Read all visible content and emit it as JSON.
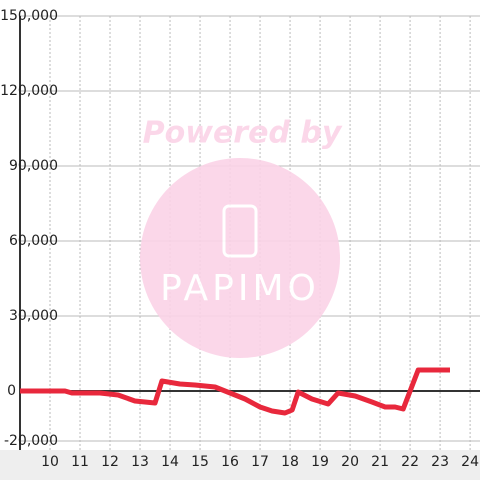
{
  "chart_data": {
    "type": "line",
    "watermark_title": "Powered by",
    "watermark_logo": "PAPIMO",
    "x": [
      9,
      10.5,
      10.73,
      11.67,
      12.27,
      12.83,
      13.5,
      13.73,
      14.33,
      14.83,
      15.5,
      16,
      16.5,
      17,
      17.4,
      17.83,
      18.07,
      18.27,
      18.73,
      19.27,
      19.6,
      20.17,
      20.73,
      21.17,
      21.5,
      21.77,
      22.27,
      23.33
    ],
    "series": [
      {
        "color": "#e8283c",
        "values": [
          0,
          0,
          -800,
          -800,
          -1600,
          -4000,
          -4800,
          4000,
          2800,
          2400,
          1600,
          -800,
          -3200,
          -6400,
          -8000,
          -8800,
          -7600,
          -400,
          -3200,
          -5200,
          -800,
          -2000,
          -4400,
          -6400,
          -6400,
          -7200,
          8400,
          8400
        ]
      }
    ],
    "xlim": [
      9,
      24.33
    ],
    "xticks": [
      10,
      11,
      12,
      13,
      14,
      15,
      16,
      17,
      18,
      19,
      20,
      21,
      22,
      23,
      24
    ],
    "ylim": [
      -20000,
      150000
    ],
    "yticks": [
      {
        "value": -20000,
        "label": "-20,000"
      },
      0,
      {
        "value": 30000,
        "label": "30,000"
      },
      {
        "value": 60000,
        "label": "60,000"
      },
      {
        "value": 90000,
        "label": "90,000"
      },
      {
        "value": 120000,
        "label": "120,000"
      },
      {
        "value": 150000,
        "label": "150,000"
      }
    ],
    "grid": true
  }
}
